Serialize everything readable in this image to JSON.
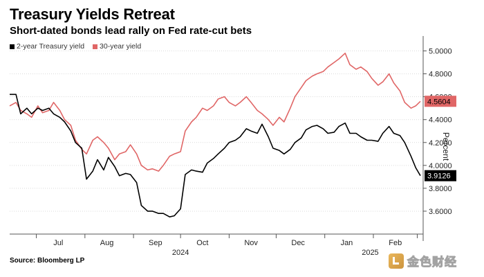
{
  "header": {
    "title": "Treasury Yields Retreat",
    "subtitle": "Short-dated bonds lead rally on Fed rate-cut bets"
  },
  "source": "Source: Bloomberg LP",
  "watermark": {
    "text": "金色财经"
  },
  "colors": {
    "two_year": "#000000",
    "thirty_year": "#e06666",
    "grid": "#d9d9d9"
  },
  "chart_data": {
    "type": "line",
    "title": "Treasury Yields Retreat",
    "subtitle": "Short-dated bonds lead rally on Fed rate-cut bets",
    "xlabel": "",
    "ylabel": "Percent",
    "ylim": [
      3.4,
      5.1
    ],
    "xlim": [
      "2024-06-14",
      "2025-03-03"
    ],
    "yticks": [
      3.6,
      3.8,
      4.0,
      4.2,
      4.4,
      4.6,
      4.8,
      5.0
    ],
    "ytick_labels": [
      "3.6000",
      "3.8000",
      "4.0000",
      "4.2000",
      "4.4000",
      "4.6000",
      "4.8000",
      "5.0000"
    ],
    "grid": true,
    "legend_position": "top-left",
    "month_labels": [
      {
        "label": "Jul",
        "date": "2024-07-15"
      },
      {
        "label": "Aug",
        "date": "2024-08-15"
      },
      {
        "label": "Sep",
        "date": "2024-09-15"
      },
      {
        "label": "Oct",
        "date": "2024-10-15"
      },
      {
        "label": "Nov",
        "date": "2024-11-15"
      },
      {
        "label": "Dec",
        "date": "2024-12-15"
      },
      {
        "label": "Jan",
        "date": "2025-01-15"
      },
      {
        "label": "Feb",
        "date": "2025-02-15"
      }
    ],
    "month_ticks": [
      "2024-07-01",
      "2024-08-01",
      "2024-09-01",
      "2024-10-01",
      "2024-11-01",
      "2024-12-01",
      "2025-01-01",
      "2025-02-01",
      "2025-03-01"
    ],
    "year_labels": [
      {
        "label": "2024",
        "date": "2024-10-01"
      },
      {
        "label": "2025",
        "date": "2025-01-30"
      }
    ],
    "series": [
      {
        "name": "2-year Treasury yield",
        "color": "#000000",
        "last_value_label": "3.9126",
        "points": [
          [
            "2024-06-14",
            4.62
          ],
          [
            "2024-06-18",
            4.62
          ],
          [
            "2024-06-21",
            4.45
          ],
          [
            "2024-06-25",
            4.5
          ],
          [
            "2024-06-28",
            4.45
          ],
          [
            "2024-07-02",
            4.5
          ],
          [
            "2024-07-05",
            4.48
          ],
          [
            "2024-07-09",
            4.5
          ],
          [
            "2024-07-12",
            4.45
          ],
          [
            "2024-07-16",
            4.42
          ],
          [
            "2024-07-19",
            4.38
          ],
          [
            "2024-07-23",
            4.3
          ],
          [
            "2024-07-26",
            4.2
          ],
          [
            "2024-07-30",
            4.15
          ],
          [
            "2024-08-02",
            3.88
          ],
          [
            "2024-08-06",
            3.95
          ],
          [
            "2024-08-09",
            4.05
          ],
          [
            "2024-08-13",
            3.96
          ],
          [
            "2024-08-16",
            4.07
          ],
          [
            "2024-08-20",
            3.99
          ],
          [
            "2024-08-23",
            3.91
          ],
          [
            "2024-08-27",
            3.93
          ],
          [
            "2024-08-30",
            3.92
          ],
          [
            "2024-09-03",
            3.85
          ],
          [
            "2024-09-06",
            3.65
          ],
          [
            "2024-09-10",
            3.6
          ],
          [
            "2024-09-13",
            3.6
          ],
          [
            "2024-09-17",
            3.58
          ],
          [
            "2024-09-20",
            3.58
          ],
          [
            "2024-09-24",
            3.55
          ],
          [
            "2024-09-27",
            3.56
          ],
          [
            "2024-10-01",
            3.62
          ],
          [
            "2024-10-04",
            3.92
          ],
          [
            "2024-10-08",
            3.96
          ],
          [
            "2024-10-11",
            3.95
          ],
          [
            "2024-10-15",
            3.94
          ],
          [
            "2024-10-18",
            4.02
          ],
          [
            "2024-10-22",
            4.06
          ],
          [
            "2024-10-25",
            4.1
          ],
          [
            "2024-10-29",
            4.15
          ],
          [
            "2024-11-01",
            4.2
          ],
          [
            "2024-11-05",
            4.22
          ],
          [
            "2024-11-08",
            4.25
          ],
          [
            "2024-11-12",
            4.32
          ],
          [
            "2024-11-15",
            4.3
          ],
          [
            "2024-11-19",
            4.28
          ],
          [
            "2024-11-22",
            4.36
          ],
          [
            "2024-11-26",
            4.25
          ],
          [
            "2024-11-29",
            4.15
          ],
          [
            "2024-12-03",
            4.13
          ],
          [
            "2024-12-06",
            4.1
          ],
          [
            "2024-12-10",
            4.14
          ],
          [
            "2024-12-13",
            4.2
          ],
          [
            "2024-12-17",
            4.24
          ],
          [
            "2024-12-20",
            4.31
          ],
          [
            "2024-12-24",
            4.34
          ],
          [
            "2024-12-27",
            4.35
          ],
          [
            "2024-12-31",
            4.32
          ],
          [
            "2025-01-03",
            4.28
          ],
          [
            "2025-01-07",
            4.29
          ],
          [
            "2025-01-10",
            4.34
          ],
          [
            "2025-01-14",
            4.37
          ],
          [
            "2025-01-17",
            4.28
          ],
          [
            "2025-01-21",
            4.28
          ],
          [
            "2025-01-24",
            4.25
          ],
          [
            "2025-01-28",
            4.22
          ],
          [
            "2025-01-31",
            4.22
          ],
          [
            "2025-02-04",
            4.21
          ],
          [
            "2025-02-07",
            4.28
          ],
          [
            "2025-02-11",
            4.34
          ],
          [
            "2025-02-14",
            4.28
          ],
          [
            "2025-02-18",
            4.26
          ],
          [
            "2025-02-21",
            4.2
          ],
          [
            "2025-02-25",
            4.08
          ],
          [
            "2025-02-28",
            3.98
          ],
          [
            "2025-03-03",
            3.91
          ]
        ]
      },
      {
        "name": "30-year yield",
        "color": "#e06666",
        "last_value_label": "4.5604",
        "points": [
          [
            "2024-06-14",
            4.52
          ],
          [
            "2024-06-18",
            4.55
          ],
          [
            "2024-06-21",
            4.48
          ],
          [
            "2024-06-25",
            4.45
          ],
          [
            "2024-06-28",
            4.42
          ],
          [
            "2024-07-02",
            4.52
          ],
          [
            "2024-07-05",
            4.46
          ],
          [
            "2024-07-09",
            4.48
          ],
          [
            "2024-07-12",
            4.55
          ],
          [
            "2024-07-16",
            4.48
          ],
          [
            "2024-07-19",
            4.4
          ],
          [
            "2024-07-23",
            4.35
          ],
          [
            "2024-07-26",
            4.22
          ],
          [
            "2024-07-30",
            4.14
          ],
          [
            "2024-08-02",
            4.1
          ],
          [
            "2024-08-06",
            4.22
          ],
          [
            "2024-08-09",
            4.25
          ],
          [
            "2024-08-13",
            4.2
          ],
          [
            "2024-08-16",
            4.15
          ],
          [
            "2024-08-20",
            4.05
          ],
          [
            "2024-08-23",
            4.1
          ],
          [
            "2024-08-27",
            4.12
          ],
          [
            "2024-08-30",
            4.18
          ],
          [
            "2024-09-03",
            4.1
          ],
          [
            "2024-09-06",
            4.0
          ],
          [
            "2024-09-10",
            3.96
          ],
          [
            "2024-09-13",
            3.97
          ],
          [
            "2024-09-17",
            3.95
          ],
          [
            "2024-09-20",
            4.0
          ],
          [
            "2024-09-24",
            4.08
          ],
          [
            "2024-09-27",
            4.1
          ],
          [
            "2024-10-01",
            4.12
          ],
          [
            "2024-10-04",
            4.3
          ],
          [
            "2024-10-08",
            4.38
          ],
          [
            "2024-10-11",
            4.42
          ],
          [
            "2024-10-15",
            4.5
          ],
          [
            "2024-10-18",
            4.48
          ],
          [
            "2024-10-22",
            4.52
          ],
          [
            "2024-10-25",
            4.58
          ],
          [
            "2024-10-29",
            4.6
          ],
          [
            "2024-11-01",
            4.55
          ],
          [
            "2024-11-05",
            4.52
          ],
          [
            "2024-11-08",
            4.55
          ],
          [
            "2024-11-12",
            4.6
          ],
          [
            "2024-11-15",
            4.55
          ],
          [
            "2024-11-19",
            4.48
          ],
          [
            "2024-11-22",
            4.45
          ],
          [
            "2024-11-26",
            4.4
          ],
          [
            "2024-11-29",
            4.35
          ],
          [
            "2024-12-03",
            4.42
          ],
          [
            "2024-12-06",
            4.38
          ],
          [
            "2024-12-10",
            4.5
          ],
          [
            "2024-12-13",
            4.6
          ],
          [
            "2024-12-17",
            4.68
          ],
          [
            "2024-12-20",
            4.74
          ],
          [
            "2024-12-24",
            4.78
          ],
          [
            "2024-12-27",
            4.8
          ],
          [
            "2024-12-31",
            4.82
          ],
          [
            "2025-01-03",
            4.86
          ],
          [
            "2025-01-07",
            4.9
          ],
          [
            "2025-01-10",
            4.93
          ],
          [
            "2025-01-14",
            4.98
          ],
          [
            "2025-01-17",
            4.88
          ],
          [
            "2025-01-21",
            4.84
          ],
          [
            "2025-01-24",
            4.86
          ],
          [
            "2025-01-28",
            4.82
          ],
          [
            "2025-01-31",
            4.76
          ],
          [
            "2025-02-04",
            4.7
          ],
          [
            "2025-02-07",
            4.73
          ],
          [
            "2025-02-11",
            4.8
          ],
          [
            "2025-02-14",
            4.72
          ],
          [
            "2025-02-18",
            4.65
          ],
          [
            "2025-02-21",
            4.55
          ],
          [
            "2025-02-25",
            4.5
          ],
          [
            "2025-02-28",
            4.52
          ],
          [
            "2025-03-03",
            4.56
          ]
        ]
      }
    ]
  }
}
